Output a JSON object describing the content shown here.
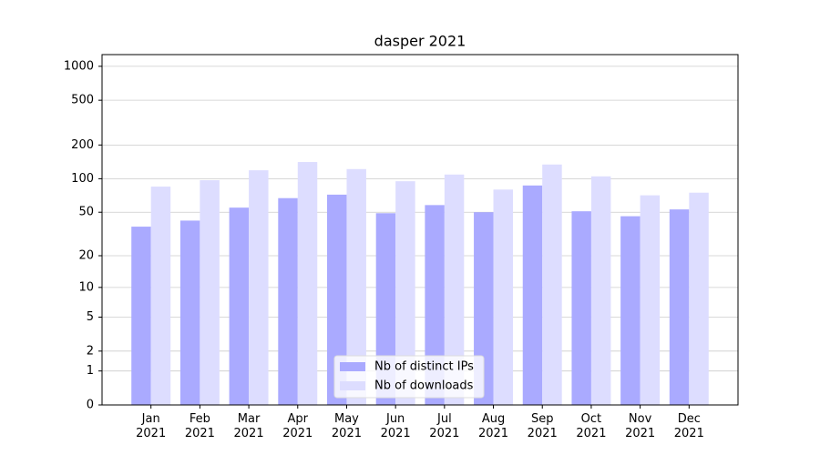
{
  "chart_data": {
    "type": "bar",
    "title": "dasper 2021",
    "categories": [
      "Jan\n2021",
      "Feb\n2021",
      "Mar\n2021",
      "Apr\n2021",
      "May\n2021",
      "Jun\n2021",
      "Jul\n2021",
      "Aug\n2021",
      "Sep\n2021",
      "Oct\n2021",
      "Nov\n2021",
      "Dec\n2021"
    ],
    "series": [
      {
        "name": "Nb of distinct IPs",
        "color": "#aaaaff",
        "values": [
          37,
          42,
          55,
          67,
          72,
          49,
          58,
          50,
          87,
          51,
          46,
          53
        ]
      },
      {
        "name": "Nb of downloads",
        "color": "#ddddff",
        "values": [
          85,
          97,
          119,
          141,
          122,
          95,
          109,
          80,
          134,
          105,
          71,
          75
        ]
      }
    ],
    "yscale": "log1p",
    "ylim": [
      0,
      1270
    ],
    "yticks": [
      0,
      1,
      2,
      5,
      10,
      20,
      50,
      100,
      200,
      500,
      1000
    ],
    "grid": true,
    "legend": "lower center"
  }
}
